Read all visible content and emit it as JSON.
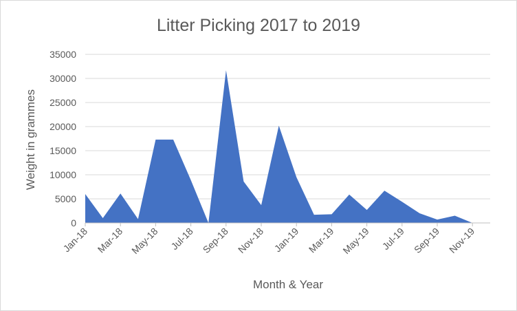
{
  "chart_data": {
    "type": "area",
    "title": "Litter Picking 2017 to 2019",
    "xlabel": "Month & Year",
    "ylabel": "Weight in grammes",
    "ylim": [
      0,
      35000
    ],
    "yticks": [
      "0",
      "5000",
      "10000",
      "15000",
      "20000",
      "25000",
      "30000",
      "35000"
    ],
    "xtick_labels": [
      "Jan-18",
      "Mar-18",
      "May-18",
      "Jul-18",
      "Sep-18",
      "Nov-18",
      "Jan-19",
      "Mar-19",
      "May-19",
      "Jul-19",
      "Sep-19",
      "Nov-19"
    ],
    "x": [
      "Jan-18",
      "Feb-18",
      "Mar-18",
      "Apr-18",
      "May-18",
      "Jun-18",
      "Jul-18",
      "Aug-18",
      "Sep-18",
      "Oct-18",
      "Nov-18",
      "Dec-18",
      "Jan-19",
      "Feb-19",
      "Mar-19",
      "Apr-19",
      "May-19",
      "Jun-19",
      "Jul-19",
      "Aug-19",
      "Sep-19",
      "Oct-19",
      "Nov-19"
    ],
    "values": [
      6000,
      1000,
      6100,
      800,
      17300,
      17300,
      8900,
      0,
      31700,
      8600,
      3700,
      20200,
      9500,
      1700,
      1800,
      5900,
      2700,
      6700,
      4400,
      2000,
      700,
      1500,
      0
    ],
    "grid": true,
    "legend": "none",
    "fill_color": "#4472C4",
    "grid_color": "#d9d9d9",
    "axis_color": "#bfbfbf",
    "text_color": "#595959"
  }
}
